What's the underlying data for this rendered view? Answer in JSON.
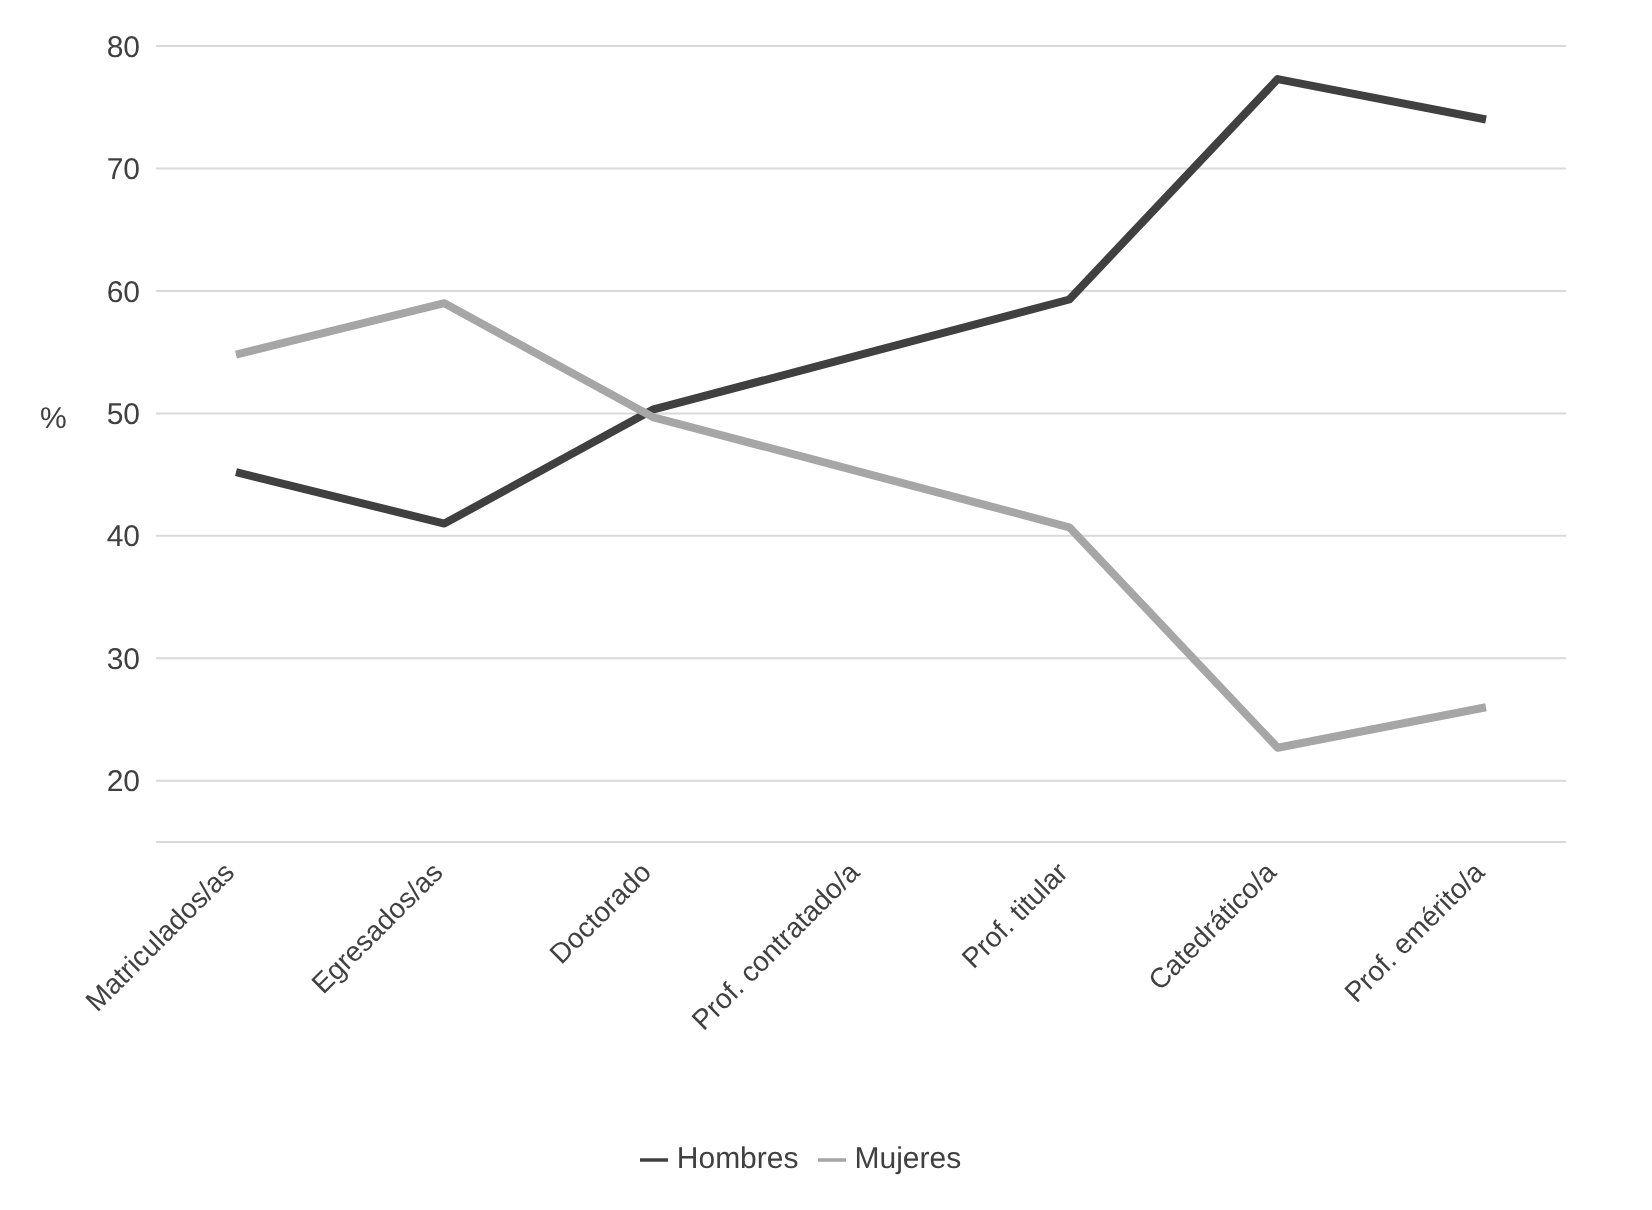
{
  "chart_data": {
    "type": "line",
    "ylabel": "%",
    "categories": [
      "Matriculados/as",
      "Egresados/as",
      "Doctorado",
      "Prof. contratado/a",
      "Prof. titular",
      "Catedrático/a",
      "Prof. emérito/a"
    ],
    "series": [
      {
        "name": "Hombres",
        "color": "#404040",
        "values": [
          45.2,
          41,
          50.3,
          54.8,
          59.3,
          77.3,
          74
        ]
      },
      {
        "name": "Mujeres",
        "color": "#a6a6a6",
        "values": [
          54.8,
          59,
          49.7,
          45.2,
          40.7,
          22.7,
          26
        ]
      }
    ],
    "ylim": [
      15,
      80
    ],
    "yticks": [
      20,
      30,
      40,
      50,
      60,
      70,
      80
    ],
    "grid": "y",
    "legend": "bottom",
    "marker": "none",
    "line_style": "solid"
  }
}
